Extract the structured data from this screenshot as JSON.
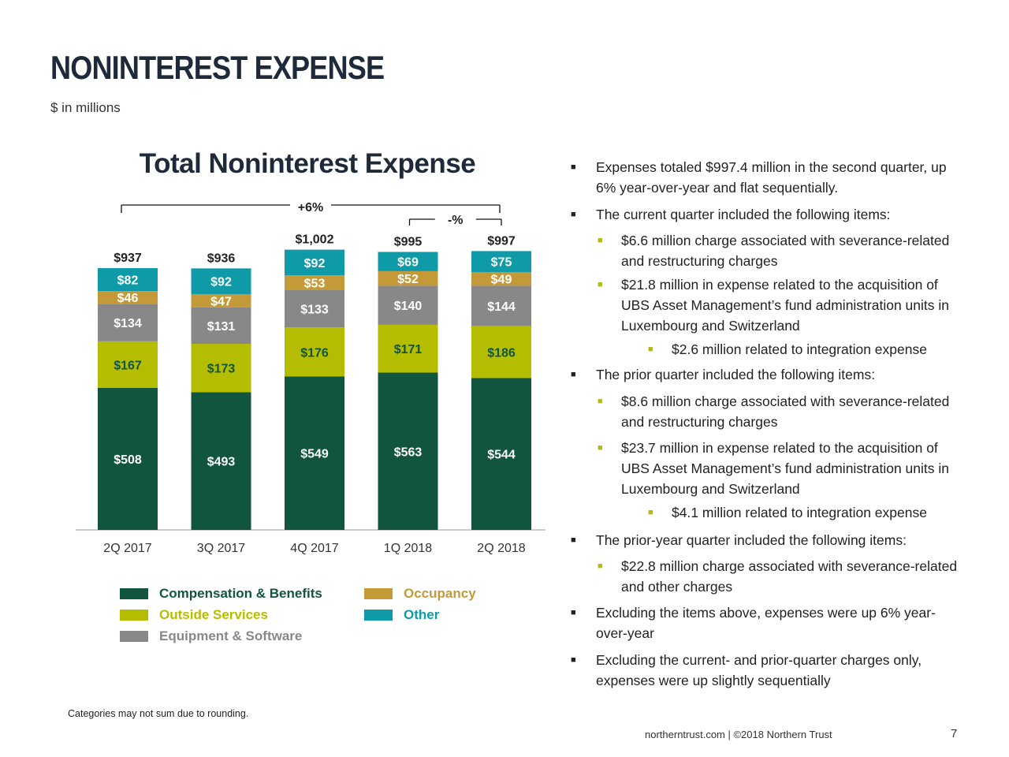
{
  "page": {
    "title": "NONINTEREST EXPENSE",
    "subtitle": "$ in millions",
    "footnote": "Categories may not sum due to rounding.",
    "footer": "northerntrust.com  |  ©2018 Northern Trust",
    "page_number": "7"
  },
  "chart_data": {
    "type": "bar",
    "stacked": true,
    "title": "Total Noninterest Expense",
    "categories": [
      "2Q 2017",
      "3Q 2017",
      "4Q 2017",
      "1Q 2018",
      "2Q 2018"
    ],
    "series": [
      {
        "name": "Compensation & Benefits",
        "color": "#11553f",
        "labelColor": "#ffffff",
        "values": [
          508,
          493,
          549,
          563,
          544
        ]
      },
      {
        "name": "Outside Services",
        "color": "#b5bd00",
        "labelColor": "#11553f",
        "values": [
          167,
          173,
          176,
          171,
          186
        ]
      },
      {
        "name": "Equipment & Software",
        "color": "#888888",
        "labelColor": "#ffffff",
        "values": [
          134,
          131,
          133,
          140,
          144
        ]
      },
      {
        "name": "Occupancy",
        "color": "#c49a38",
        "labelColor": "#ffffff",
        "values": [
          46,
          47,
          53,
          52,
          49
        ]
      },
      {
        "name": "Other",
        "color": "#0f9aa8",
        "labelColor": "#ffffff",
        "values": [
          82,
          92,
          92,
          69,
          75
        ]
      }
    ],
    "totals": [
      937,
      936,
      1002,
      995,
      997
    ],
    "total_labels": [
      "$937",
      "$936",
      "$1,002",
      "$995",
      "$997"
    ],
    "ylim": [
      0,
      1100
    ],
    "annotations": [
      {
        "label": "+6%",
        "from": "2Q 2017",
        "to": "2Q 2018"
      },
      {
        "label": "-%",
        "from": "1Q 2018",
        "to": "2Q 2018"
      }
    ]
  },
  "legend": [
    {
      "label": "Compensation & Benefits",
      "color": "#11553f",
      "textColor": "#11553f"
    },
    {
      "label": "Occupancy",
      "color": "#c49a38",
      "textColor": "#c49a38"
    },
    {
      "label": "Outside Services",
      "color": "#b5bd00",
      "textColor": "#b5bd00"
    },
    {
      "label": "Other",
      "color": "#0f9aa8",
      "textColor": "#0f9aa8"
    },
    {
      "label": "Equipment & Software",
      "color": "#888888",
      "textColor": "#888888"
    }
  ],
  "bullets": [
    {
      "level": 1,
      "text": "Expenses totaled $997.4 million in the second quarter, up 6% year-over-year and flat sequentially."
    },
    {
      "level": 1,
      "text": "The current quarter included the following items:"
    },
    {
      "level": 2,
      "text": "$6.6 million charge associated with severance-related and restructuring charges"
    },
    {
      "level": 2,
      "text": "$21.8 million in expense related to the acquisition of UBS Asset Management’s fund administration units in Luxembourg and Switzerland"
    },
    {
      "level": 3,
      "text": "$2.6 million related to integration expense"
    },
    {
      "level": 1,
      "text": "The prior quarter included the following items:"
    },
    {
      "level": 2,
      "text": "$8.6 million charge associated with severance-related and restructuring charges"
    },
    {
      "level": 2,
      "text": "$23.7 million in expense related to the acquisition of UBS Asset Management’s fund administration units in Luxembourg and Switzerland"
    },
    {
      "level": 3,
      "text": "$4.1 million related to integration expense"
    },
    {
      "level": 1,
      "text": "The prior-year quarter included the following items:"
    },
    {
      "level": 2,
      "text": "$22.8 million charge associated with severance-related and other charges"
    },
    {
      "level": 1,
      "text": "Excluding the items above, expenses were up 6% year-over-year"
    },
    {
      "level": 1,
      "text": "Excluding the current- and prior-quarter charges only, expenses were up slightly sequentially"
    }
  ]
}
